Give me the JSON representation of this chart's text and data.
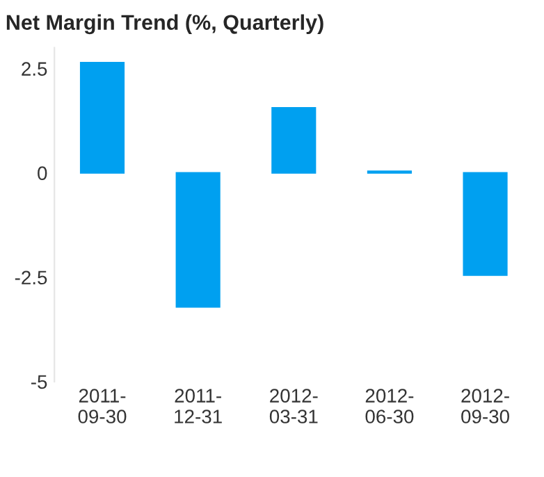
{
  "chart_data": {
    "type": "bar",
    "title": "Net Margin Trend (%, Quarterly)",
    "categories": [
      "2011-\n09-30",
      "2011-\n12-31",
      "2012-\n03-31",
      "2012-\n06-30",
      "2012-\n09-30"
    ],
    "series": [
      {
        "color": "#00a0f0",
        "values": [
          2.64,
          -3.21,
          1.56,
          0.04,
          -2.45
        ]
      }
    ],
    "ylim": [
      -5,
      3
    ],
    "yticks": [
      {
        "value": -5,
        "label": "-5"
      },
      {
        "value": -2.5,
        "label": "-2.5"
      },
      0,
      2.5
    ],
    "grid": false
  }
}
